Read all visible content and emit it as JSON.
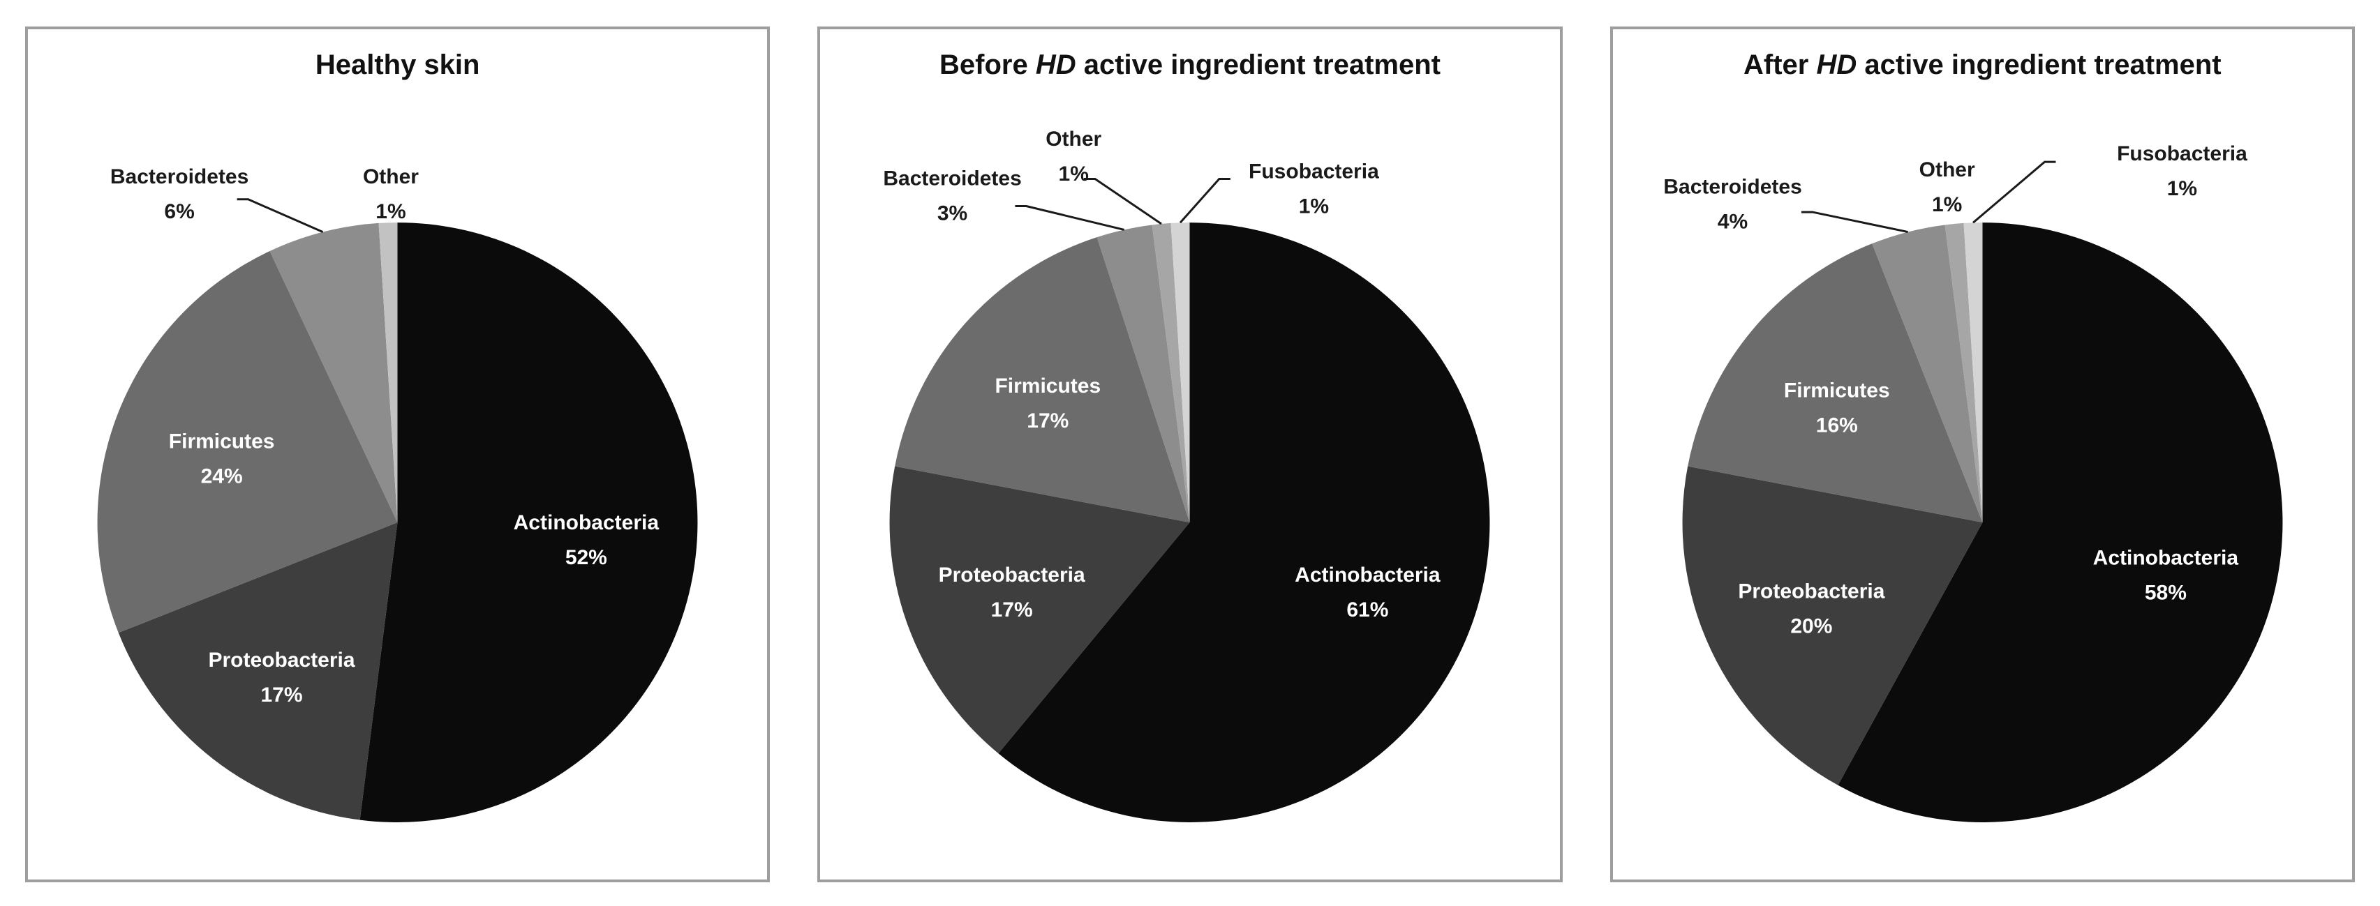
{
  "figure": {
    "background": "#ffffff",
    "panel_border_color": "#9e9e9e",
    "outside_label_color": "#1a1a1a",
    "inside_label_color": "#ffffff",
    "leader_line_color": "#1a1a1a",
    "title_color": "#111111"
  },
  "chart_data": [
    {
      "type": "pie",
      "title": "Healthy skin",
      "title_segments": [
        {
          "text": "Healthy skin",
          "italic": false
        }
      ],
      "categories": [
        "Actinobacteria",
        "Proteobacteria",
        "Firmicutes",
        "Bacteroidetes",
        "Other"
      ],
      "values": [
        52,
        17,
        24,
        6,
        1
      ],
      "slice_colors": [
        "#0b0b0b",
        "#3e3e3e",
        "#6c6c6c",
        "#8d8d8d",
        "#c2c2c2"
      ],
      "label_format": "category + percent",
      "start_angle_deg": 0,
      "direction": "clockwise",
      "inside_labels": [
        "Actinobacteria",
        "Proteobacteria",
        "Firmicutes"
      ],
      "outside_labels": [
        {
          "category": "Bacteroidetes",
          "x": 0.205,
          "y": 0.191,
          "leader": true,
          "leader_start": [
            0.298,
            0.2
          ]
        },
        {
          "category": "Other",
          "x": 0.491,
          "y": 0.191,
          "leader": false
        }
      ]
    },
    {
      "type": "pie",
      "title": "Before HD active ingredient treatment",
      "title_segments": [
        {
          "text": "Before ",
          "italic": false
        },
        {
          "text": "HD",
          "italic": true
        },
        {
          "text": " active ingredient treatment",
          "italic": false
        }
      ],
      "categories": [
        "Actinobacteria",
        "Proteobacteria",
        "Firmicutes",
        "Bacteroidetes",
        "Other",
        "Fusobacteria"
      ],
      "values": [
        61,
        17,
        17,
        3,
        1,
        1
      ],
      "slice_colors": [
        "#0b0b0b",
        "#3e3e3e",
        "#6c6c6c",
        "#8d8d8d",
        "#a6a6a6",
        "#d4d4d4"
      ],
      "label_format": "category + percent",
      "start_angle_deg": 0,
      "direction": "clockwise",
      "inside_labels": [
        "Actinobacteria",
        "Proteobacteria",
        "Firmicutes"
      ],
      "outside_labels": [
        {
          "category": "Bacteroidetes",
          "x": 0.179,
          "y": 0.193,
          "leader": true,
          "leader_start": [
            0.279,
            0.208
          ]
        },
        {
          "category": "Other",
          "x": 0.343,
          "y": 0.147,
          "leader": true,
          "leader_start": [
            0.372,
            0.176
          ]
        },
        {
          "category": "Fusobacteria",
          "x": 0.668,
          "y": 0.185,
          "leader": true,
          "leader_start": [
            0.54,
            0.176
          ]
        }
      ]
    },
    {
      "type": "pie",
      "title": "After HD active ingredient treatment",
      "title_segments": [
        {
          "text": "After ",
          "italic": false
        },
        {
          "text": "HD",
          "italic": true
        },
        {
          "text": " active ingredient treatment",
          "italic": false
        }
      ],
      "categories": [
        "Actinobacteria",
        "Proteobacteria",
        "Firmicutes",
        "Bacteroidetes",
        "Other",
        "Fusobacteria"
      ],
      "values": [
        58,
        20,
        16,
        4,
        1,
        1
      ],
      "slice_colors": [
        "#0b0b0b",
        "#3e3e3e",
        "#6c6c6c",
        "#8d8d8d",
        "#a6a6a6",
        "#d4d4d4"
      ],
      "label_format": "category + percent",
      "start_angle_deg": 0,
      "direction": "clockwise",
      "inside_labels": [
        "Actinobacteria",
        "Proteobacteria",
        "Firmicutes"
      ],
      "outside_labels": [
        {
          "category": "Bacteroidetes",
          "x": 0.162,
          "y": 0.203,
          "leader": true,
          "leader_start": [
            0.27,
            0.215
          ]
        },
        {
          "category": "Other",
          "x": 0.452,
          "y": 0.183,
          "leader": false
        },
        {
          "category": "Fusobacteria",
          "x": 0.77,
          "y": 0.164,
          "leader": true,
          "leader_start": [
            0.584,
            0.156
          ]
        }
      ]
    }
  ]
}
